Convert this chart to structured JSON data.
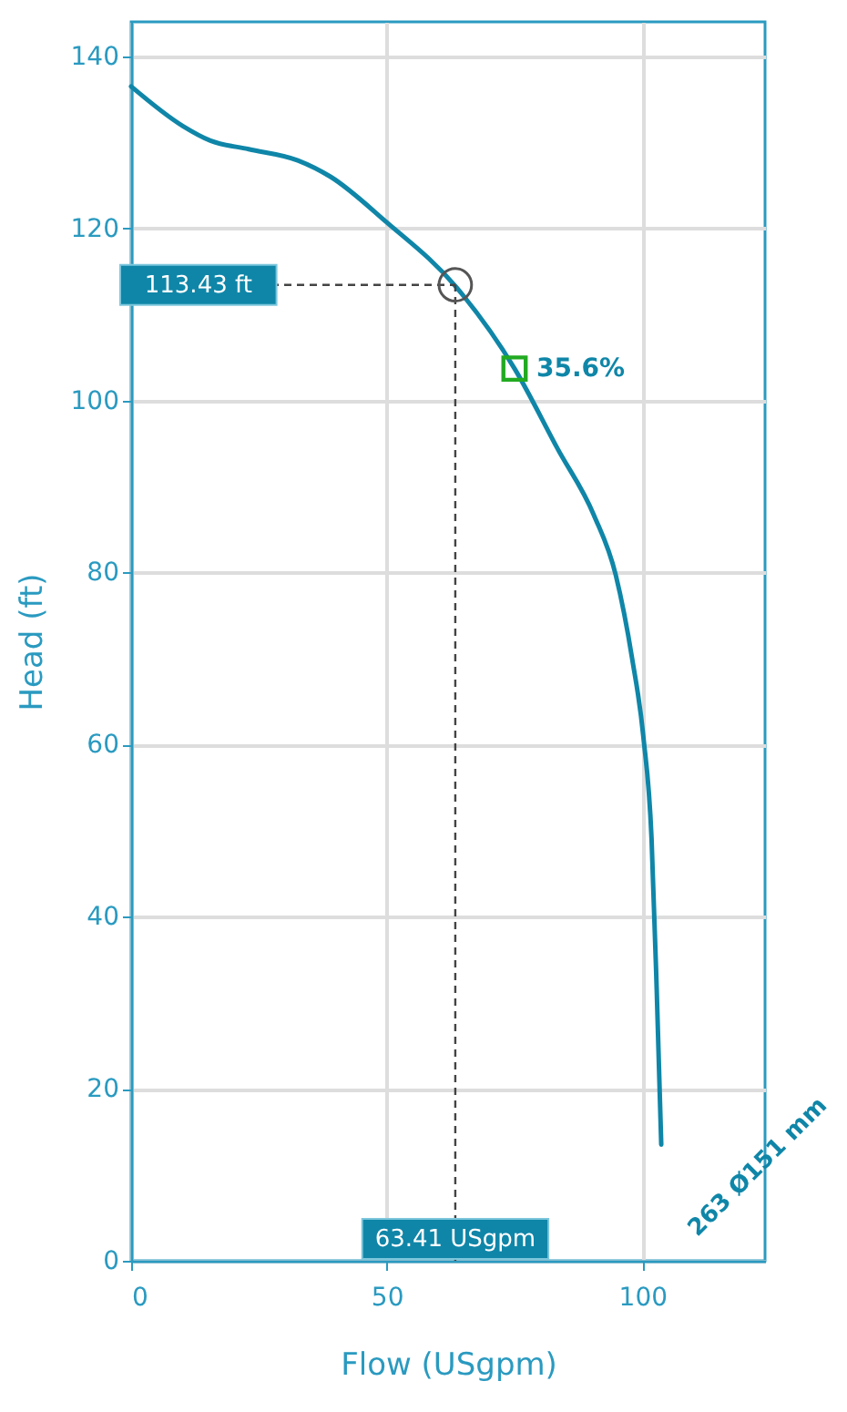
{
  "chart_data": {
    "type": "line",
    "xlabel": "Flow (USgpm)",
    "ylabel": "Head (ft)",
    "xlim": [
      0,
      124
    ],
    "ylim": [
      0,
      144
    ],
    "xticks": [
      0,
      50,
      100
    ],
    "yticks": [
      0,
      20,
      40,
      60,
      80,
      100,
      120,
      140
    ],
    "grid": true,
    "series": [
      {
        "color": "#0f86a8",
        "marker": "none",
        "x": [
          0,
          10.1,
          15.5,
          23,
          32.6,
          39,
          49.8,
          63.7,
          75,
          83.5,
          90.5,
          94.8,
          98,
          100.2,
          101.8,
          102.8,
          103.7
        ],
        "values": [
          136.5,
          131.9,
          130.2,
          129.2,
          127.9,
          126,
          120.8,
          113.1,
          103.7,
          94.3,
          86.7,
          79.7,
          70,
          60.9,
          49.1,
          31.7,
          13.5
        ]
      },
      {
        "type": "scatter",
        "color": "#555555",
        "marker": "circle",
        "x": [
          63.41
        ],
        "values": [
          113.43
        ]
      },
      {
        "type": "scatter",
        "color": "#22aa22",
        "marker": "square",
        "x": [
          75
        ],
        "values": [
          103.7
        ]
      }
    ],
    "ref_lines": [
      {
        "axis": "y",
        "value": 113.43,
        "label": "113.43 ft",
        "color": "#444444",
        "line_style": "dashed"
      },
      {
        "axis": "x",
        "value": 63.41,
        "label": "63.41 USgpm",
        "color": "#444444",
        "line_style": "dashed"
      }
    ],
    "annotations": [
      {
        "text": "35.6%",
        "x": 75,
        "y": 103.7
      },
      "263 Ø151 mm"
    ]
  }
}
